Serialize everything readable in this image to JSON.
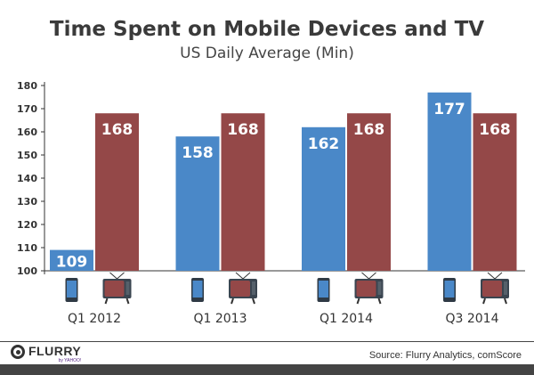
{
  "chart_data": {
    "type": "bar",
    "title": "Time Spent on Mobile Devices and TV",
    "subtitle": "US Daily Average (Min)",
    "categories": [
      "Q1 2012",
      "Q1 2013",
      "Q1 2014",
      "Q3 2014"
    ],
    "series": [
      {
        "icon": "smartphone-icon",
        "color": "#4a88c8",
        "values": [
          109,
          158,
          162,
          177
        ]
      },
      {
        "icon": "tv-icon",
        "color": "#944848",
        "values": [
          168,
          168,
          168,
          168
        ]
      }
    ],
    "yticks": [
      100,
      110,
      120,
      130,
      140,
      150,
      160,
      170,
      180
    ],
    "ylim": [
      100,
      180
    ],
    "grid": false,
    "data_labels": true
  },
  "footer": {
    "logo": "FLURRY",
    "logo_sub": "by YAHOO!",
    "source": "Source: Flurry Analytics, comScore"
  }
}
